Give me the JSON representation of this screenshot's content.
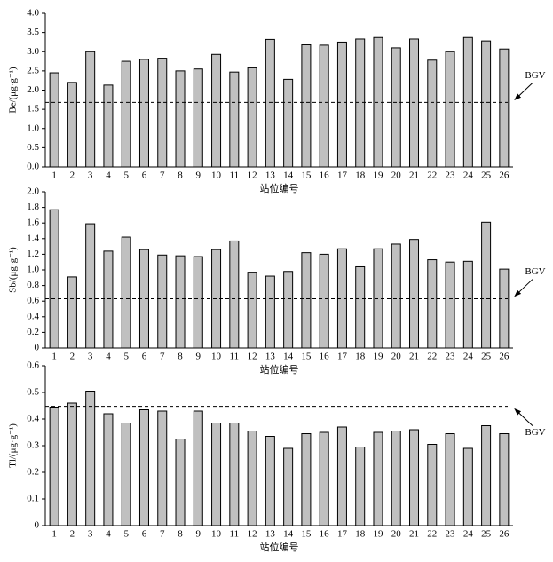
{
  "chart_data": [
    {
      "type": "bar",
      "y_label": "Be/(μg·g⁻¹)",
      "x_label": "站位编号",
      "color": "#c0c0c0",
      "categories": [
        "1",
        "2",
        "3",
        "4",
        "5",
        "6",
        "7",
        "8",
        "9",
        "10",
        "11",
        "12",
        "13",
        "14",
        "15",
        "16",
        "17",
        "18",
        "19",
        "20",
        "21",
        "22",
        "23",
        "24",
        "25",
        "26"
      ],
      "values": [
        2.45,
        2.2,
        3.0,
        2.13,
        2.75,
        2.8,
        2.83,
        2.5,
        2.55,
        2.93,
        2.47,
        2.58,
        3.32,
        2.28,
        3.18,
        3.17,
        3.25,
        3.33,
        3.37,
        3.1,
        3.33,
        2.78,
        3.0,
        3.37,
        3.28,
        3.07
      ],
      "ylim": [
        0,
        4
      ],
      "yticks": [
        {
          "value": 0,
          "label": "0.0"
        },
        0.5,
        {
          "value": 1,
          "label": "1.0"
        },
        1.5,
        {
          "value": 2,
          "label": "2.0"
        },
        2.5,
        {
          "value": 3,
          "label": "3.0"
        },
        3.5,
        {
          "value": 4,
          "label": "4.0"
        }
      ],
      "reference_line": {
        "label": "BGV",
        "value": 1.68
      }
    },
    {
      "type": "bar",
      "y_label": "Sb/(μg·g⁻¹)",
      "x_label": "站位编号",
      "color": "#c0c0c0",
      "categories": [
        "1",
        "2",
        "3",
        "4",
        "5",
        "6",
        "7",
        "8",
        "9",
        "10",
        "11",
        "12",
        "13",
        "14",
        "15",
        "16",
        "17",
        "18",
        "19",
        "20",
        "21",
        "22",
        "23",
        "24",
        "25",
        "26"
      ],
      "values": [
        1.77,
        0.91,
        1.59,
        1.24,
        1.42,
        1.26,
        1.19,
        1.18,
        1.17,
        1.26,
        1.37,
        0.97,
        0.92,
        0.98,
        1.22,
        1.2,
        1.27,
        1.04,
        1.27,
        1.33,
        1.39,
        1.13,
        1.1,
        1.11,
        1.61,
        1.01
      ],
      "ylim": [
        0,
        2
      ],
      "yticks": [
        0,
        0.2,
        0.4,
        0.6,
        0.8,
        {
          "value": 1,
          "label": "1.0"
        },
        1.2,
        1.4,
        1.6,
        1.8,
        {
          "value": 2,
          "label": "2.0"
        }
      ],
      "reference_line": {
        "label": "BGV",
        "value": 0.63
      }
    },
    {
      "type": "bar",
      "y_label": "Tl/(μg·g⁻¹)",
      "x_label": "站位编号",
      "color": "#c0c0c0",
      "categories": [
        "1",
        "2",
        "3",
        "4",
        "5",
        "6",
        "7",
        "8",
        "9",
        "10",
        "11",
        "12",
        "13",
        "14",
        "15",
        "16",
        "17",
        "18",
        "19",
        "20",
        "21",
        "22",
        "23",
        "24",
        "25",
        "26"
      ],
      "values": [
        0.445,
        0.46,
        0.505,
        0.42,
        0.385,
        0.435,
        0.43,
        0.325,
        0.43,
        0.385,
        0.385,
        0.355,
        0.335,
        0.29,
        0.345,
        0.35,
        0.37,
        0.295,
        0.35,
        0.355,
        0.36,
        0.305,
        0.345,
        0.29,
        0.375,
        0.345
      ],
      "ylim": [
        0,
        0.6
      ],
      "yticks": [
        0,
        0.1,
        0.2,
        0.3,
        0.4,
        0.5,
        0.6
      ],
      "reference_line": {
        "label": "BGV",
        "value": 0.448
      }
    }
  ]
}
